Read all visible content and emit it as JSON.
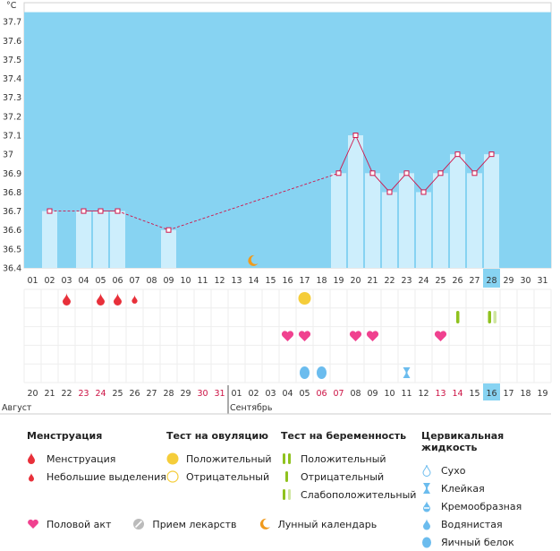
{
  "chart_data": {
    "type": "line",
    "ylabel": "°C",
    "ylim": [
      36.4,
      37.8
    ],
    "y_ticks": [
      "37.7",
      "37.6",
      "37.5",
      "37.4",
      "37.3",
      "37.2",
      "37.1",
      "37",
      "36.9",
      "36.8",
      "36.7",
      "36.6",
      "36.5",
      "36.4"
    ],
    "cycle_days": [
      "01",
      "02",
      "03",
      "04",
      "05",
      "06",
      "07",
      "08",
      "09",
      "10",
      "11",
      "12",
      "13",
      "14",
      "15",
      "16",
      "17",
      "18",
      "19",
      "20",
      "21",
      "22",
      "23",
      "24",
      "25",
      "26",
      "27",
      "28",
      "29",
      "30",
      "31"
    ],
    "calendar_dates": [
      {
        "d": "20",
        "red": false
      },
      {
        "d": "21",
        "red": false
      },
      {
        "d": "22",
        "red": false
      },
      {
        "d": "23",
        "red": true
      },
      {
        "d": "24",
        "red": true
      },
      {
        "d": "25",
        "red": false
      },
      {
        "d": "26",
        "red": false
      },
      {
        "d": "27",
        "red": false
      },
      {
        "d": "28",
        "red": false
      },
      {
        "d": "29",
        "red": false
      },
      {
        "d": "30",
        "red": true
      },
      {
        "d": "31",
        "red": true
      },
      {
        "d": "01",
        "red": false
      },
      {
        "d": "02",
        "red": false
      },
      {
        "d": "03",
        "red": false
      },
      {
        "d": "04",
        "red": false
      },
      {
        "d": "05",
        "red": false
      },
      {
        "d": "06",
        "red": true
      },
      {
        "d": "07",
        "red": true
      },
      {
        "d": "08",
        "red": false
      },
      {
        "d": "09",
        "red": false
      },
      {
        "d": "10",
        "red": false
      },
      {
        "d": "11",
        "red": false
      },
      {
        "d": "12",
        "red": false
      },
      {
        "d": "13",
        "red": true
      },
      {
        "d": "14",
        "red": true
      },
      {
        "d": "15",
        "red": false
      },
      {
        "d": "16",
        "red": false
      },
      {
        "d": "17",
        "red": false
      },
      {
        "d": "18",
        "red": false
      },
      {
        "d": "19",
        "red": false
      }
    ],
    "months": [
      {
        "name": "Август",
        "start_day": 1
      },
      {
        "name": "Сентябрь",
        "start_day": 13
      }
    ],
    "highlight_day": 28,
    "series": [
      {
        "points": [
          {
            "day": 2,
            "temp": 36.7
          },
          {
            "day": 4,
            "temp": 36.7
          },
          {
            "day": 5,
            "temp": 36.7
          },
          {
            "day": 6,
            "temp": 36.7
          },
          {
            "day": 9,
            "temp": 36.6
          },
          {
            "day": 19,
            "temp": 36.9
          },
          {
            "day": 20,
            "temp": 37.1
          },
          {
            "day": 21,
            "temp": 36.9
          },
          {
            "day": 22,
            "temp": 36.8
          },
          {
            "day": 23,
            "temp": 36.9
          },
          {
            "day": 24,
            "temp": 36.8
          },
          {
            "day": 25,
            "temp": 36.9
          },
          {
            "day": 26,
            "temp": 37.0
          },
          {
            "day": 27,
            "temp": 36.9
          },
          {
            "day": 28,
            "temp": 37.0
          }
        ]
      }
    ],
    "moon_day": 14,
    "markers": {
      "menstruation": [
        3,
        5,
        6
      ],
      "light_bleeding": [
        7
      ],
      "ovulation_positive": [
        17
      ],
      "pregnancy_positive": [
        26
      ],
      "pregnancy_weak_positive": [
        28
      ],
      "intercourse": [
        16,
        17,
        20,
        21,
        25
      ],
      "cervical_sticky": [
        23
      ],
      "cervical_egg_white": [
        17,
        18
      ]
    }
  },
  "legend": {
    "menstruation": {
      "title": "Менструация",
      "items": [
        "Менструация",
        "Небольшие выделения"
      ]
    },
    "ovulation": {
      "title": "Тест на овуляцию",
      "items": [
        "Положительный",
        "Отрицательный"
      ]
    },
    "pregnancy": {
      "title": "Тест на беременность",
      "items": [
        "Положительный",
        "Отрицательный",
        "Слабоположительный"
      ]
    },
    "cervical": {
      "title": "Цервикальная жидкость",
      "items": [
        "Сухо",
        "Клейкая",
        "Кремообразная",
        "Водянистая",
        "Яичный белок"
      ]
    },
    "other": {
      "intercourse": "Половой акт",
      "medication": "Прием лекарств",
      "moon": "Лунный календарь"
    }
  },
  "colors": {
    "plot_bg": "#87d3f2",
    "bar": "#cdeefc",
    "line": "#d0144a",
    "marker_red": "#e8303a",
    "heart": "#f0418f",
    "ovulation": "#f5cd3a",
    "pregnancy": "#8fc21e",
    "cervical": "#6bbcee",
    "moon": "#f09a1c"
  }
}
